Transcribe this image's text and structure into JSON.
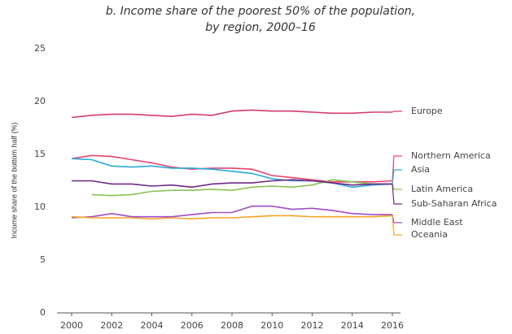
{
  "chart_data": {
    "type": "line",
    "title": [
      "b. Income share of the poorest 50% of the population,",
      "by region, 2000–16"
    ],
    "y_label": "Income share of the bottom half (%)",
    "x": [
      2000,
      2001,
      2002,
      2003,
      2004,
      2005,
      2006,
      2007,
      2008,
      2009,
      2010,
      2011,
      2012,
      2013,
      2014,
      2015,
      2016
    ],
    "xlim": [
      2000,
      2016
    ],
    "xticks": [
      2000,
      2002,
      2004,
      2006,
      2008,
      2010,
      2012,
      2014,
      2016
    ],
    "ylim": [
      0,
      25
    ],
    "yticks": [
      0,
      5,
      10,
      15,
      20,
      25
    ],
    "grid": false,
    "series": [
      {
        "name": "Europe",
        "color": "#d63a6e",
        "values": [
          18.5,
          18.7,
          18.8,
          18.8,
          18.7,
          18.6,
          18.8,
          18.7,
          19.1,
          19.2,
          19.1,
          19.1,
          19.0,
          18.9,
          18.9,
          19.0,
          19.0
        ]
      },
      {
        "name": "Northern America",
        "color": "#e5456d",
        "values": [
          14.6,
          14.9,
          14.8,
          14.5,
          14.2,
          13.8,
          13.6,
          13.7,
          13.7,
          13.6,
          13.0,
          12.8,
          12.6,
          12.4,
          12.4,
          12.4,
          12.5
        ]
      },
      {
        "name": "Asia",
        "color": "#2aaad8",
        "values": [
          14.6,
          14.5,
          13.9,
          13.8,
          13.9,
          13.7,
          13.7,
          13.6,
          13.4,
          13.2,
          12.7,
          12.5,
          12.5,
          12.3,
          11.9,
          12.1,
          12.2
        ]
      },
      {
        "name": "Latin America",
        "color": "#8cc152",
        "values": [
          null,
          11.2,
          11.1,
          11.2,
          11.5,
          11.6,
          11.6,
          11.7,
          11.6,
          11.9,
          12.0,
          11.9,
          12.1,
          12.6,
          12.4,
          12.2,
          12.2
        ]
      },
      {
        "name": "Sub-Saharan Africa",
        "color": "#6e2a82",
        "values": [
          12.5,
          12.5,
          12.2,
          12.2,
          12.0,
          12.1,
          11.9,
          12.2,
          12.3,
          12.3,
          12.5,
          12.6,
          12.5,
          12.3,
          12.1,
          12.2,
          12.2
        ]
      },
      {
        "name": "Middle East",
        "color": "#a24bc8",
        "values": [
          9.0,
          9.1,
          9.4,
          9.1,
          9.1,
          9.1,
          9.3,
          9.5,
          9.5,
          10.1,
          10.1,
          9.8,
          9.9,
          9.7,
          9.4,
          9.3,
          9.3
        ]
      },
      {
        "name": "Oceania",
        "color": "#f5a623",
        "values": [
          9.1,
          9.0,
          9.0,
          9.0,
          8.9,
          9.0,
          8.9,
          9.0,
          9.0,
          9.1,
          9.2,
          9.2,
          9.1,
          9.1,
          9.1,
          9.1,
          9.2
        ]
      }
    ]
  }
}
